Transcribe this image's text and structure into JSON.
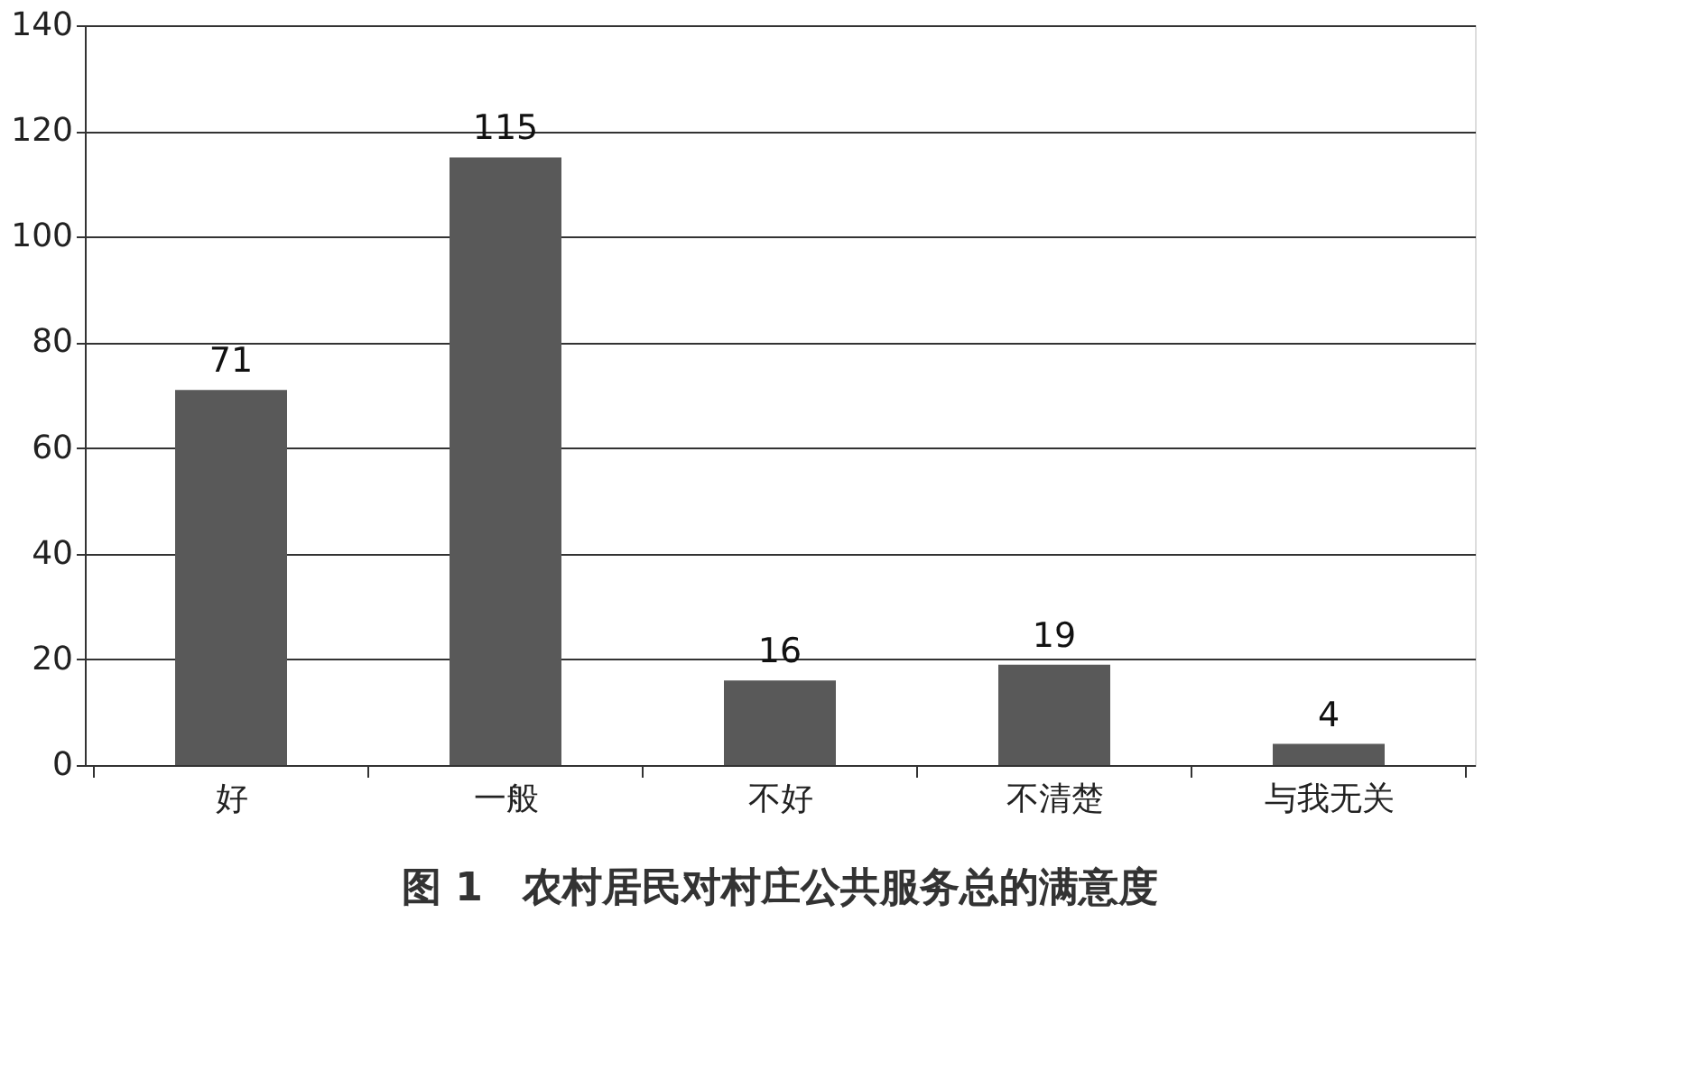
{
  "chart_data": {
    "type": "bar",
    "title": "图 1　农村居民对村庄公共服务总的满意度",
    "categories": [
      "好",
      "一般",
      "不好",
      "不清楚",
      "与我无关"
    ],
    "values": [
      71,
      115,
      16,
      19,
      4
    ],
    "color": "#595959",
    "ylim": [
      0,
      140
    ],
    "yticks": [
      0,
      20,
      40,
      60,
      80,
      100,
      120,
      140
    ],
    "grid": "y",
    "data_labels": true
  }
}
